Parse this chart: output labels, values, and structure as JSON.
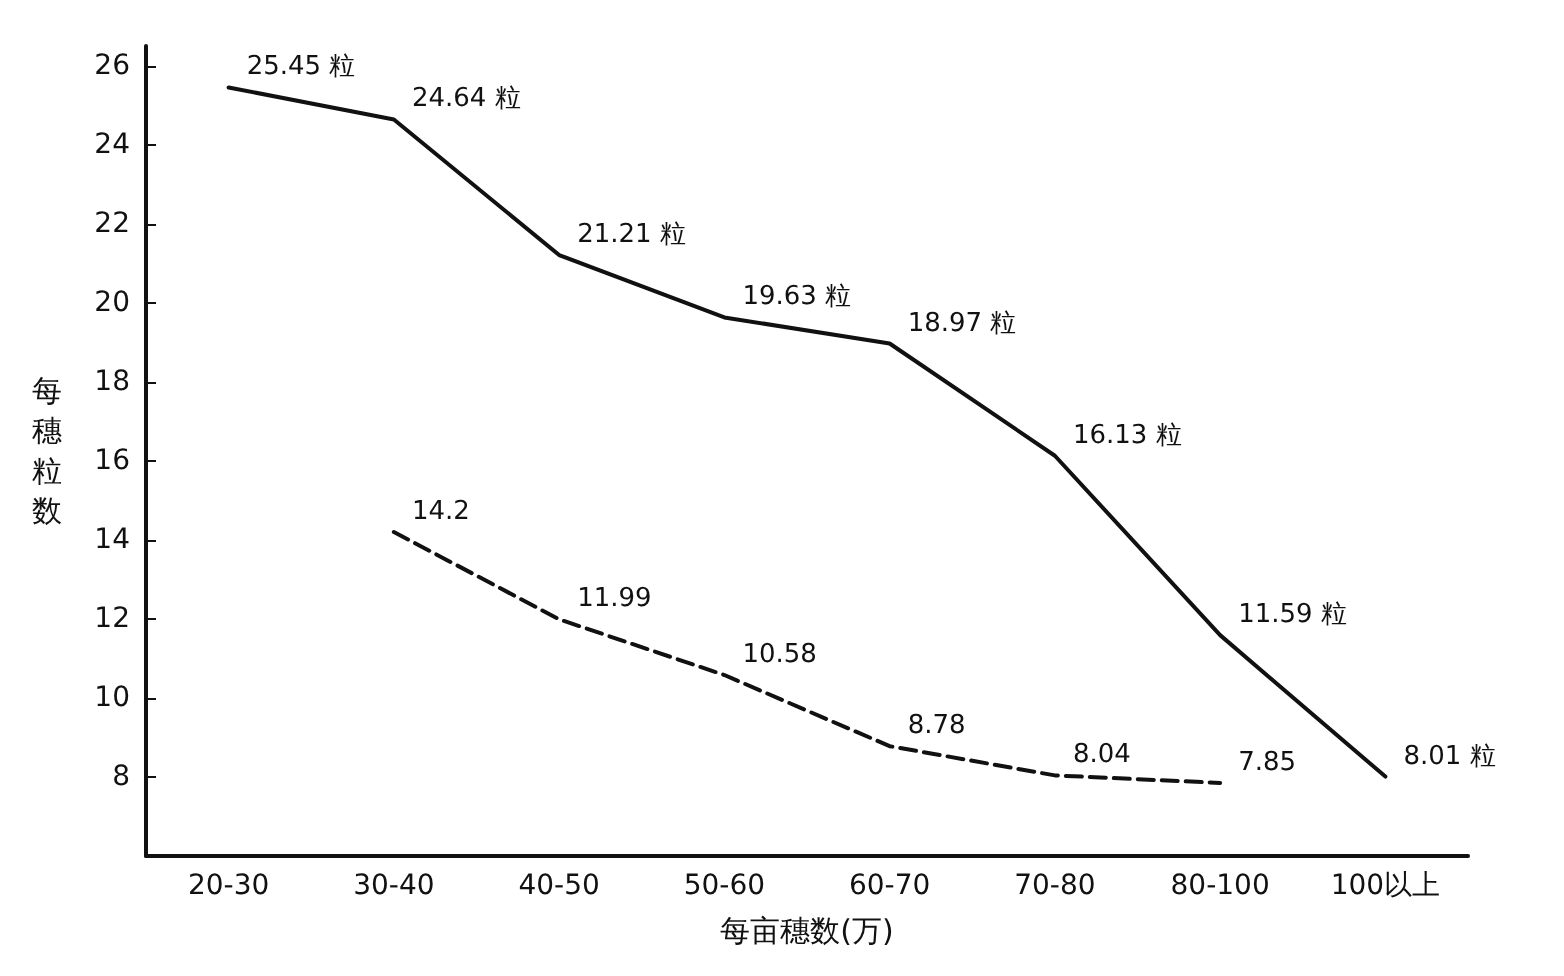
{
  "chart_data": {
    "type": "line",
    "xlabel": "每亩穗数(万)",
    "ylabel": "每穗粒数",
    "categories": [
      "20-30",
      "30-40",
      "40-50",
      "50-60",
      "60-70",
      "70-80",
      "80-100",
      "100以上"
    ],
    "series": [
      {
        "color": "#111111",
        "line_style": "solid",
        "values": [
          25.45,
          24.64,
          21.21,
          19.63,
          18.97,
          16.13,
          11.59,
          8.01
        ],
        "value_labels": [
          "25.45 粒",
          "24.64 粒",
          "21.21 粒",
          "19.63 粒",
          "18.97 粒",
          "16.13 粒",
          "11.59 粒",
          "8.01 粒"
        ]
      },
      {
        "color": "#111111",
        "line_style": "dashed",
        "values": [
          null,
          14.2,
          11.99,
          10.58,
          8.78,
          8.04,
          7.85,
          null
        ],
        "value_labels": [
          null,
          "14.2",
          "11.99",
          "10.58",
          "8.78",
          "8.04",
          "7.85",
          null
        ]
      }
    ],
    "ylim": [
      6,
      26.5
    ],
    "yticks": [
      8,
      10,
      12,
      14,
      16,
      18,
      20,
      22,
      24,
      26
    ],
    "grid": false,
    "marker": "none"
  }
}
